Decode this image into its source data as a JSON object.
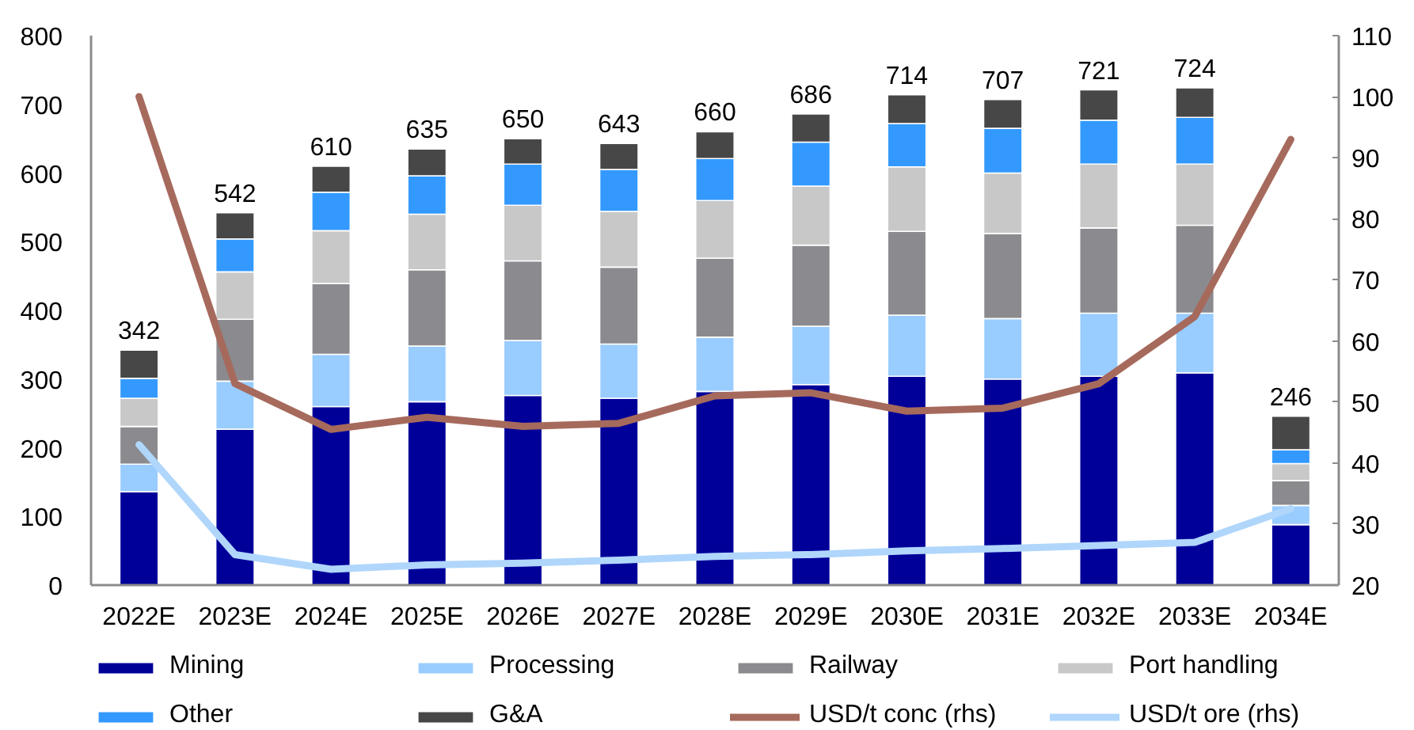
{
  "chart_data": {
    "type": "bar",
    "stacked": true,
    "categories": [
      "2022E",
      "2023E",
      "2024E",
      "2025E",
      "2026E",
      "2027E",
      "2028E",
      "2029E",
      "2030E",
      "2031E",
      "2032E",
      "2033E",
      "2034E"
    ],
    "series": [
      {
        "name": "Mining",
        "color": "#000099",
        "values": [
          136,
          227,
          260,
          267,
          276,
          272,
          282,
          292,
          304,
          300,
          304,
          309,
          88
        ]
      },
      {
        "name": "Processing",
        "color": "#99ccff",
        "values": [
          40,
          70,
          76,
          81,
          80,
          79,
          79,
          85,
          89,
          88,
          92,
          87,
          28
        ]
      },
      {
        "name": "Railway",
        "color": "#8a8a8f",
        "values": [
          55,
          90,
          103,
          111,
          116,
          112,
          115,
          118,
          122,
          124,
          124,
          128,
          36
        ]
      },
      {
        "name": "Port handling",
        "color": "#c8c8c8",
        "values": [
          41,
          69,
          77,
          81,
          81,
          81,
          84,
          86,
          94,
          88,
          93,
          89,
          25
        ]
      },
      {
        "name": "Other",
        "color": "#3399ff",
        "values": [
          29,
          48,
          56,
          56,
          60,
          61,
          61,
          64,
          63,
          65,
          64,
          68,
          20
        ]
      },
      {
        "name": "G&A",
        "color": "#474747",
        "values": [
          41,
          38,
          38,
          39,
          37,
          38,
          39,
          41,
          42,
          42,
          44,
          43,
          49
        ]
      },
      {
        "name": "USD/t conc (rhs)",
        "type": "line",
        "axis": "y2",
        "color": "#a66a5c",
        "values": [
          100,
          53,
          45.5,
          47.5,
          46,
          46.5,
          51,
          51.5,
          48.5,
          49,
          53,
          64,
          93
        ]
      },
      {
        "name": "USD/t ore (rhs)",
        "type": "line",
        "axis": "y2",
        "color": "#b0d6fb",
        "values": [
          43,
          25,
          22.6,
          23.3,
          23.6,
          24.1,
          24.7,
          25,
          25.6,
          26,
          26.5,
          27,
          32.5
        ]
      }
    ],
    "totals": [
      "342",
      "542",
      "610",
      "635",
      "650",
      "643",
      "660",
      "686",
      "714",
      "707",
      "721",
      "724",
      "246"
    ],
    "ylim": [
      0,
      800
    ],
    "yticks": [
      0,
      100,
      200,
      300,
      400,
      500,
      600,
      700,
      800
    ],
    "y2lim": [
      20,
      110
    ],
    "y2ticks": [
      20,
      30,
      40,
      50,
      60,
      70,
      80,
      90,
      100,
      110
    ],
    "legend": "bottom"
  }
}
